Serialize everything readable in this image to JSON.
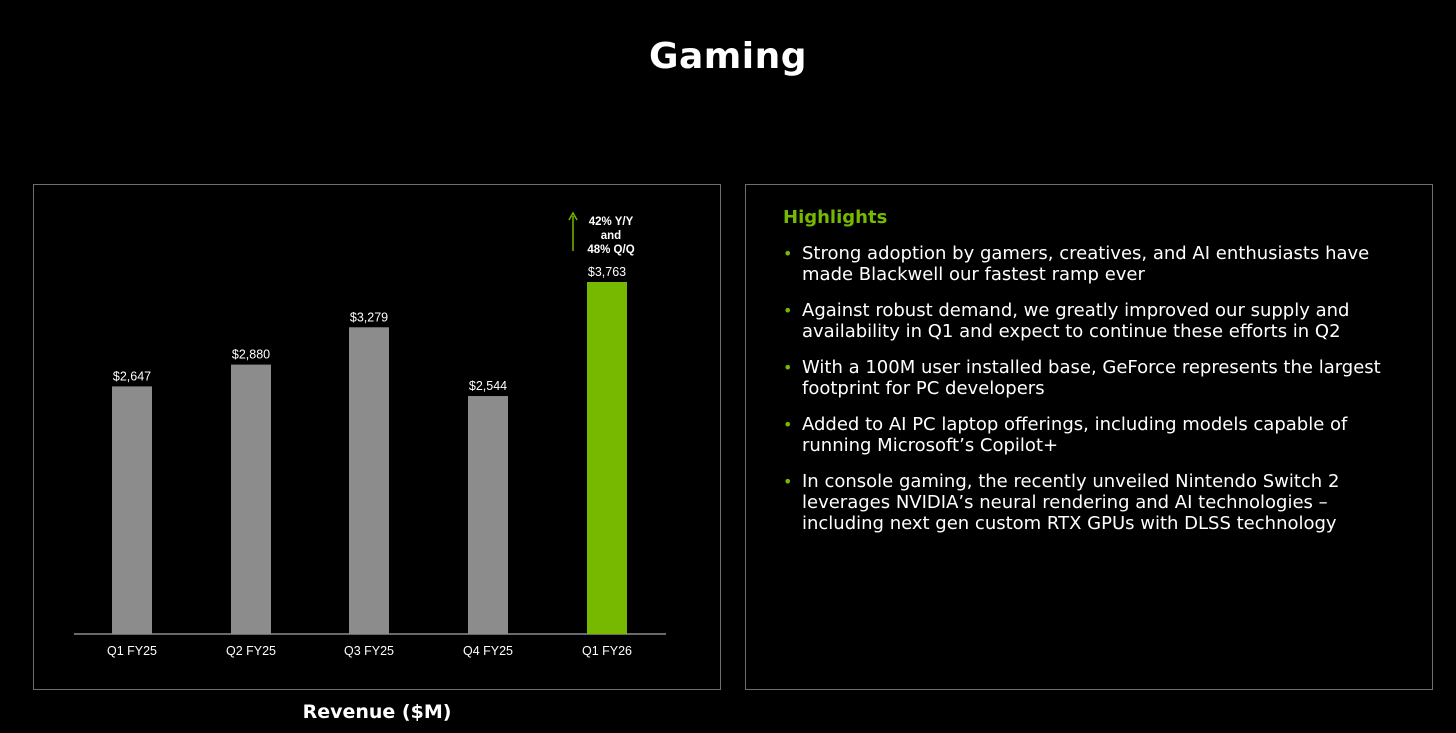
{
  "title": "Gaming",
  "colors": {
    "accent": "#76b900",
    "bar": "#8c8c8c",
    "axis": "#8c8c8c",
    "background": "#000000"
  },
  "chart_data": {
    "type": "bar",
    "categories": [
      "Q1 FY25",
      "Q2 FY25",
      "Q3 FY25",
      "Q4 FY25",
      "Q1 FY26"
    ],
    "values": [
      2647,
      2880,
      3279,
      2544,
      3763
    ],
    "value_labels": [
      "$2,647",
      "$2,880",
      "$3,279",
      "$2,544",
      "$3,763"
    ],
    "highlighted_category": "Q1 FY26",
    "xlabel": "Revenue ($M)",
    "ylabel": "",
    "ylim": [
      0,
      4800
    ],
    "grid": false,
    "annotation": {
      "lines": [
        "42% Y/Y",
        "and",
        "48% Q/Q"
      ],
      "icon": "up-arrow-icon"
    }
  },
  "highlights": {
    "title": "Highlights",
    "items": [
      "Strong adoption by gamers, creatives, and AI enthusiasts have made Blackwell our fastest ramp ever",
      "Against robust demand, we greatly improved our supply and availability in Q1 and expect to continue these efforts in Q2",
      "With a 100M user installed base, GeForce represents the largest footprint for PC developers",
      "Added to AI PC laptop offerings, including models capable of running Microsoft’s Copilot+",
      "In console gaming, the recently unveiled Nintendo Switch 2 leverages NVIDIA’s neural rendering and AI technologies – including next gen custom RTX GPUs with DLSS technology"
    ]
  }
}
